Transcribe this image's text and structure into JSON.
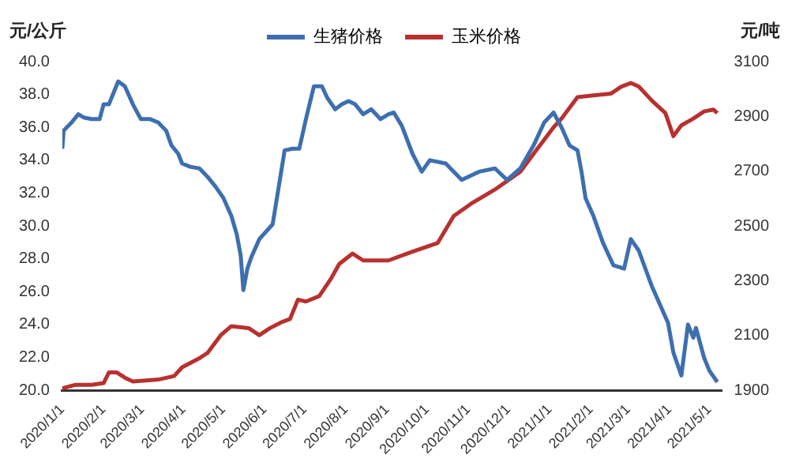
{
  "chart_data": {
    "type": "line",
    "ylabel": "元/公斤",
    "y2label": "元/吨",
    "legend": "top",
    "grid": false,
    "marker": "none",
    "xlim": [
      "2020-01-01",
      "2021-05-10"
    ],
    "xticks": [
      {
        "value": "2020-01-01",
        "label": "2020/1/1"
      },
      {
        "value": "2020-02-01",
        "label": "2020/2/1"
      },
      {
        "value": "2020-03-01",
        "label": "2020/3/1"
      },
      {
        "value": "2020-04-01",
        "label": "2020/4/1"
      },
      {
        "value": "2020-05-01",
        "label": "2020/5/1"
      },
      {
        "value": "2020-06-01",
        "label": "2020/6/1"
      },
      {
        "value": "2020-07-01",
        "label": "2020/7/1"
      },
      {
        "value": "2020-08-01",
        "label": "2020/8/1"
      },
      {
        "value": "2020-09-01",
        "label": "2020/9/1"
      },
      {
        "value": "2020-10-01",
        "label": "2020/10/1"
      },
      {
        "value": "2020-11-01",
        "label": "2020/11/1"
      },
      {
        "value": "2020-12-01",
        "label": "2020/12/1"
      },
      {
        "value": "2021-01-01",
        "label": "2021/1/1"
      },
      {
        "value": "2021-02-01",
        "label": "2021/2/1"
      },
      {
        "value": "2021-03-01",
        "label": "2021/3/1"
      },
      {
        "value": "2021-04-01",
        "label": "2021/4/1"
      },
      {
        "value": "2021-05-01",
        "label": "2021/5/1"
      }
    ],
    "ylim": [
      20,
      40
    ],
    "yticks": [
      {
        "value": 20,
        "label": "20.0"
      },
      {
        "value": 22,
        "label": "22.0"
      },
      {
        "value": 24,
        "label": "24.0"
      },
      {
        "value": 26,
        "label": "26.0"
      },
      {
        "value": 28,
        "label": "28.0"
      },
      {
        "value": 30,
        "label": "30.0"
      },
      {
        "value": 32,
        "label": "32.0"
      },
      {
        "value": 34,
        "label": "34.0"
      },
      {
        "value": 36,
        "label": "36.0"
      },
      {
        "value": 38,
        "label": "38.0"
      },
      {
        "value": 40,
        "label": "40.0"
      }
    ],
    "y2lim": [
      1900,
      3100
    ],
    "y2ticks": [
      1900,
      2100,
      2300,
      2500,
      2700,
      2900,
      3100
    ],
    "series": [
      {
        "name": "生猪价格",
        "color": "#3d6fb0",
        "x": [
          "2020-01-01",
          "2020-01-02",
          "2020-01-08",
          "2020-01-13",
          "2020-01-17",
          "2020-01-23",
          "2020-01-29",
          "2020-02-01",
          "2020-02-05",
          "2020-02-10",
          "2020-02-12",
          "2020-02-17",
          "2020-02-23",
          "2020-02-29",
          "2020-03-07",
          "2020-03-13",
          "2020-03-19",
          "2020-03-23",
          "2020-03-28",
          "2020-03-31",
          "2020-04-06",
          "2020-04-13",
          "2020-04-19",
          "2020-04-25",
          "2020-05-01",
          "2020-05-07",
          "2020-05-11",
          "2020-05-14",
          "2020-05-16",
          "2020-05-19",
          "2020-05-22",
          "2020-05-28",
          "2020-06-07",
          "2020-06-16",
          "2020-06-22",
          "2020-06-27",
          "2020-07-02",
          "2020-07-08",
          "2020-07-14",
          "2020-07-18",
          "2020-07-24",
          "2020-07-29",
          "2020-08-03",
          "2020-08-08",
          "2020-08-14",
          "2020-08-20",
          "2020-08-27",
          "2020-09-02",
          "2020-09-06",
          "2020-09-12",
          "2020-09-20",
          "2020-09-27",
          "2020-10-03",
          "2020-10-15",
          "2020-10-27",
          "2020-11-09",
          "2020-11-21",
          "2020-11-30",
          "2020-12-10",
          "2020-12-20",
          "2020-12-28",
          "2021-01-04",
          "2021-01-10",
          "2021-01-16",
          "2021-01-22",
          "2021-01-25",
          "2021-01-28",
          "2021-02-03",
          "2021-02-10",
          "2021-02-18",
          "2021-02-26",
          "2021-03-03",
          "2021-03-09",
          "2021-03-19",
          "2021-03-31",
          "2021-04-04",
          "2021-04-10",
          "2021-04-15",
          "2021-04-19",
          "2021-04-21",
          "2021-04-27",
          "2021-05-01",
          "2021-05-07"
        ],
        "values": [
          34.7,
          35.8,
          36.3,
          36.8,
          36.6,
          36.5,
          36.5,
          37.4,
          37.4,
          38.4,
          38.8,
          38.5,
          37.4,
          36.5,
          36.5,
          36.3,
          35.8,
          34.9,
          34.4,
          33.8,
          33.6,
          33.5,
          33.0,
          32.4,
          31.7,
          30.6,
          29.5,
          28.2,
          26.1,
          27.4,
          28.1,
          29.2,
          30.1,
          34.6,
          34.7,
          34.7,
          36.5,
          38.5,
          38.5,
          37.8,
          37.1,
          37.4,
          37.6,
          37.4,
          36.8,
          37.1,
          36.5,
          36.8,
          36.9,
          36.1,
          34.4,
          33.3,
          34.0,
          33.8,
          32.8,
          33.3,
          33.5,
          32.8,
          33.5,
          34.9,
          36.3,
          36.9,
          36.0,
          34.9,
          34.6,
          33.3,
          31.7,
          30.6,
          29.0,
          27.6,
          27.4,
          29.2,
          28.5,
          26.3,
          24.1,
          22.3,
          20.9,
          24.0,
          23.2,
          23.8,
          22.0,
          21.2,
          20.5
        ]
      },
      {
        "name": "玉米价格",
        "color": "#b8312f",
        "axis": "y2",
        "x": [
          "2020-01-01",
          "2020-01-11",
          "2020-01-23",
          "2020-02-01",
          "2020-02-05",
          "2020-02-11",
          "2020-02-17",
          "2020-02-23",
          "2020-03-13",
          "2020-03-25",
          "2020-03-31",
          "2020-04-13",
          "2020-04-19",
          "2020-04-29",
          "2020-05-07",
          "2020-05-20",
          "2020-05-28",
          "2020-06-05",
          "2020-06-13",
          "2020-06-20",
          "2020-06-26",
          "2020-07-02",
          "2020-07-12",
          "2020-07-21",
          "2020-07-27",
          "2020-08-06",
          "2020-08-14",
          "2020-09-02",
          "2020-09-20",
          "2020-10-09",
          "2020-10-21",
          "2020-11-03",
          "2020-11-21",
          "2020-12-10",
          "2020-12-22",
          "2021-01-04",
          "2021-01-10",
          "2021-01-22",
          "2021-02-03",
          "2021-02-16",
          "2021-02-24",
          "2021-03-03",
          "2021-03-09",
          "2021-03-19",
          "2021-03-29",
          "2021-04-04",
          "2021-04-10",
          "2021-04-19",
          "2021-04-27",
          "2021-05-04",
          "2021-05-07"
        ],
        "values": [
          1907,
          1920,
          1920,
          1926,
          1965,
          1965,
          1946,
          1932,
          1939,
          1952,
          1984,
          2017,
          2036,
          2101,
          2134,
          2127,
          2101,
          2127,
          2147,
          2160,
          2231,
          2224,
          2244,
          2309,
          2361,
          2399,
          2374,
          2374,
          2406,
          2438,
          2536,
          2581,
          2633,
          2698,
          2776,
          2860,
          2892,
          2970,
          2977,
          2983,
          3009,
          3022,
          3009,
          2957,
          2912,
          2828,
          2867,
          2892,
          2918,
          2925,
          2912
        ]
      }
    ]
  }
}
